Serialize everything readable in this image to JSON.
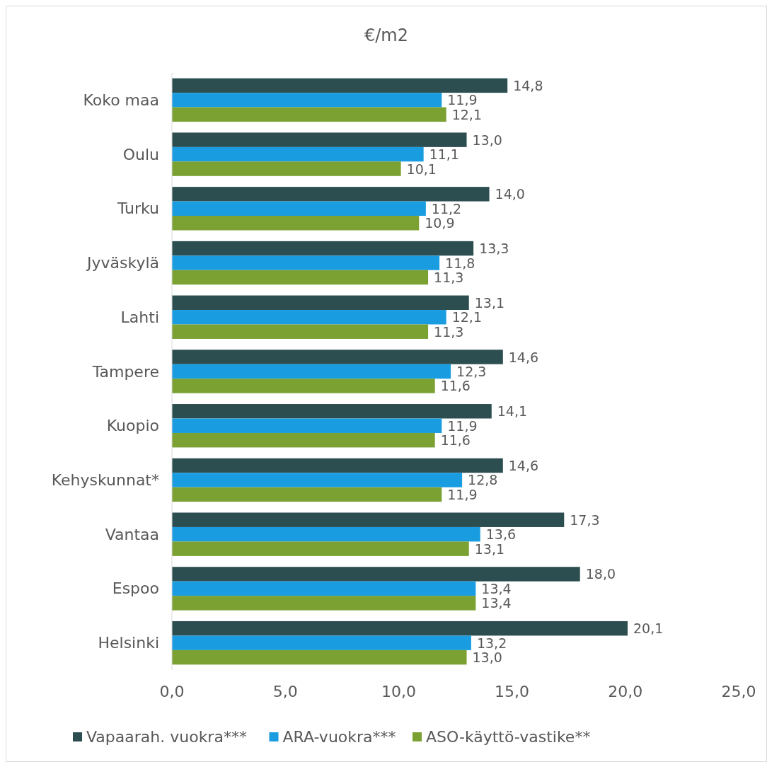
{
  "chart_data": {
    "type": "bar",
    "orientation": "horizontal",
    "title": "€/m2",
    "categories": [
      "Koko maa",
      "Oulu",
      "Turku",
      "Jyväskylä",
      "Lahti",
      "Tampere",
      "Kuopio",
      "Kehyskunnat*",
      "Vantaa",
      "Espoo",
      "Helsinki"
    ],
    "series": [
      {
        "name": "Vapaarah. vuokra***",
        "color": "#2d4e50",
        "values": [
          14.8,
          13.0,
          14.0,
          13.3,
          13.1,
          14.6,
          14.1,
          14.6,
          17.3,
          18.0,
          20.1
        ],
        "value_labels": [
          "14,8",
          "13,0",
          "14,0",
          "13,3",
          "13,1",
          "14,6",
          "14,1",
          "14,6",
          "17,3",
          "18,0",
          "20,1"
        ]
      },
      {
        "name": "ARA-vuokra***",
        "color": "#1a9de0",
        "values": [
          11.9,
          11.1,
          11.2,
          11.8,
          12.1,
          12.3,
          11.9,
          12.8,
          13.6,
          13.4,
          13.2
        ],
        "value_labels": [
          "11,9",
          "11,1",
          "11,2",
          "11,8",
          "12,1",
          "12,3",
          "11,9",
          "12,8",
          "13,6",
          "13,4",
          "13,2"
        ]
      },
      {
        "name": "ASO-käyttö-vastike**",
        "color": "#7aa132",
        "values": [
          12.1,
          10.1,
          10.9,
          11.3,
          11.3,
          11.6,
          11.6,
          11.9,
          13.1,
          13.4,
          13.0
        ],
        "value_labels": [
          "12,1",
          "10,1",
          "10,9",
          "11,3",
          "11,3",
          "11,6",
          "11,6",
          "11,9",
          "13,1",
          "13,4",
          "13,0"
        ]
      }
    ],
    "xlim": [
      0,
      25
    ],
    "xticks": [
      {
        "value": 0,
        "label": "0,0"
      },
      {
        "value": 5,
        "label": "5,0"
      },
      {
        "value": 10,
        "label": "10,0"
      },
      {
        "value": 15,
        "label": "15,0"
      },
      {
        "value": 20,
        "label": "20,0"
      },
      {
        "value": 25,
        "label": "25,0"
      }
    ],
    "grid": false,
    "legend": "bottom"
  }
}
